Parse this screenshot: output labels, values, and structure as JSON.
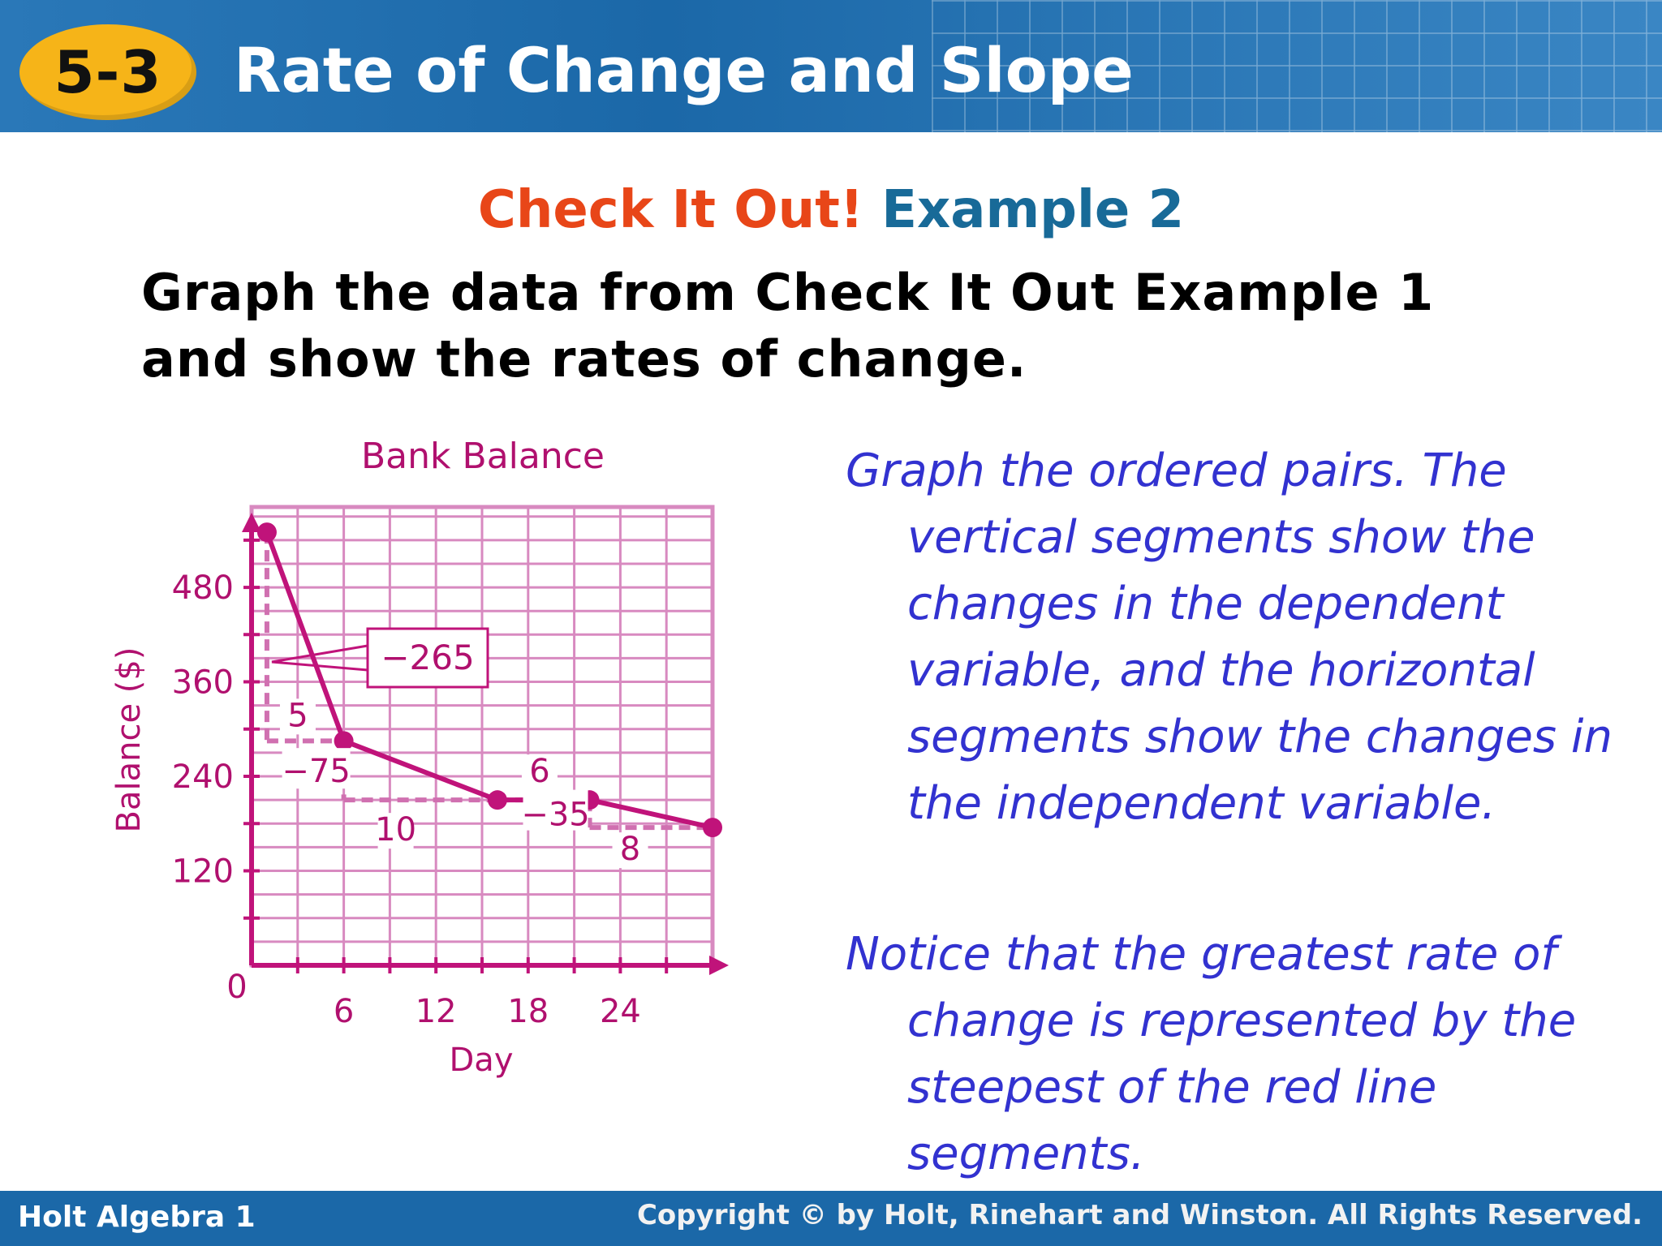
{
  "header": {
    "badge": "5-3",
    "title": "Rate of Change and Slope"
  },
  "subtitle": {
    "red": "Check It Out!",
    "blue": "Example 2"
  },
  "prompt": {
    "line1": "Graph the data from Check It Out Example 1",
    "line2": "and show the rates of change."
  },
  "paragraph1": {
    "lines": [
      "Graph the ordered pairs. The",
      "vertical segments show the",
      "changes in the dependent",
      "variable, and the horizontal",
      "segments show the changes in",
      "the independent variable."
    ]
  },
  "paragraph2": {
    "lines": [
      "Notice that the greatest rate of",
      "change is represented by the",
      "steepest of the red line",
      "segments."
    ]
  },
  "footer": {
    "left": "Holt Algebra 1",
    "right": "Copyright © by Holt, Rinehart and Winston. All Rights Reserved."
  },
  "chart_data": {
    "type": "line",
    "title": "Bank Balance",
    "xlabel": "Day",
    "ylabel": "Balance ($)",
    "xlim": [
      0,
      30
    ],
    "ylim": [
      0,
      580
    ],
    "x_ticks": [
      6,
      12,
      18,
      24
    ],
    "y_ticks": [
      120,
      240,
      360,
      480
    ],
    "origin_label": "0",
    "grid": true,
    "series": [
      {
        "points": [
          [
            1,
            550
          ],
          [
            6,
            285
          ],
          [
            16,
            210
          ],
          [
            22,
            210
          ],
          [
            30,
            175
          ]
        ]
      }
    ],
    "annotations": {
      "vertical_changes": [
        {
          "label": "−265",
          "x": 1,
          "y1": 550,
          "y2": 285
        },
        {
          "label": "−75",
          "x": 6,
          "y1": 285,
          "y2": 210
        },
        {
          "label": "−35",
          "x": 22,
          "y1": 210,
          "y2": 175
        }
      ],
      "horizontal_changes": [
        {
          "label": "5",
          "x1": 1,
          "x2": 6,
          "y": 285
        },
        {
          "label": "10",
          "x1": 6,
          "x2": 16,
          "y": 210
        },
        {
          "label": "6",
          "x1": 16,
          "x2": 22,
          "y": 210
        },
        {
          "label": "8",
          "x1": 22,
          "x2": 30,
          "y": 175
        }
      ]
    },
    "colors": {
      "line": "#c0137a",
      "grid": "#d88ac0",
      "dashed": "#d070b0",
      "text": "#b0106e"
    }
  }
}
